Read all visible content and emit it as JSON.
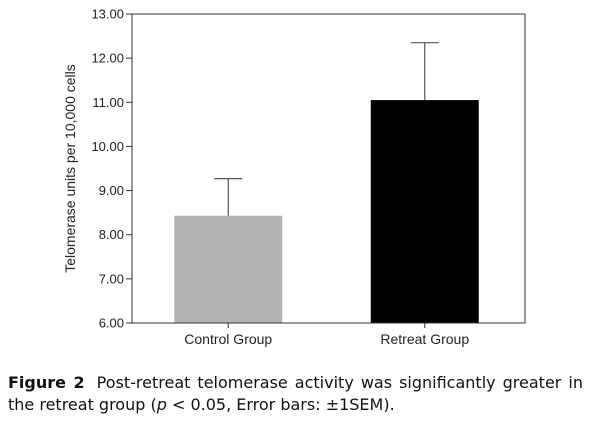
{
  "chart_data": {
    "type": "bar",
    "categories": [
      "Control Group",
      "Retreat Group"
    ],
    "values": [
      8.43,
      11.05
    ],
    "error_upper": [
      9.27,
      12.35
    ],
    "bar_colors": [
      "#b3b3b3",
      "#000000"
    ],
    "title": "",
    "xlabel": "",
    "ylabel": "Telomerase units per 10,000 cells",
    "ylim": [
      6.0,
      13.0
    ],
    "yticks": [
      6.0,
      7.0,
      8.0,
      9.0,
      10.0,
      11.0,
      12.0,
      13.0
    ],
    "ytick_labels": [
      "6.00",
      "7.00",
      "8.00",
      "9.00",
      "10.00",
      "11.00",
      "12.00",
      "13.00"
    ],
    "grid": false,
    "legend": "none"
  },
  "caption": {
    "label": "Figure 2",
    "text_before_p": "Post-retreat telomerase activity was significantly greater in the retreat group (",
    "p_symbol": "p",
    "text_after_p": " < 0.05, Error bars: ±1SEM)."
  }
}
